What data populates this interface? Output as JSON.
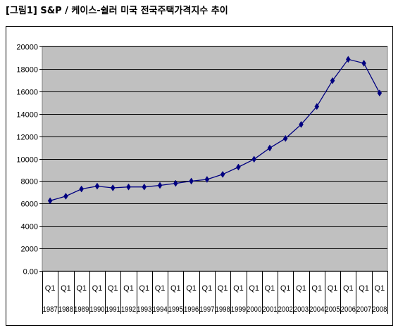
{
  "figure_title": "[그림1] S&P / 케이스-쉴러 미국 전국주택가격지수 추이",
  "colors": {
    "plot_bg": "#c0c0c0",
    "line": "#000080",
    "marker": "#000080",
    "grid": "#000000"
  },
  "chart_data": {
    "type": "line",
    "title": "",
    "xlabel": "",
    "ylabel": "",
    "ylim": [
      0,
      20000
    ],
    "yticks": [
      "0.00",
      "2000",
      "4000",
      "6000",
      "8000",
      "10000",
      "12000",
      "14000",
      "16000",
      "18000",
      "20000"
    ],
    "grid": true,
    "legend": "none",
    "categories": [
      {
        "q": "Q1",
        "year": "1987"
      },
      {
        "q": "Q1",
        "year": "1988"
      },
      {
        "q": "Q1",
        "year": "1989"
      },
      {
        "q": "Q1",
        "year": "1990"
      },
      {
        "q": "Q1",
        "year": "1991"
      },
      {
        "q": "Q1",
        "year": "1992"
      },
      {
        "q": "Q1",
        "year": "1993"
      },
      {
        "q": "Q1",
        "year": "1994"
      },
      {
        "q": "Q1",
        "year": "1995"
      },
      {
        "q": "Q1",
        "year": "1996"
      },
      {
        "q": "Q1",
        "year": "1997"
      },
      {
        "q": "Q1",
        "year": "1998"
      },
      {
        "q": "Q1",
        "year": "1999"
      },
      {
        "q": "Q1",
        "year": "2000"
      },
      {
        "q": "Q1",
        "year": "2001"
      },
      {
        "q": "Q1",
        "year": "2002"
      },
      {
        "q": "Q1",
        "year": "2003"
      },
      {
        "q": "Q1",
        "year": "2004"
      },
      {
        "q": "Q1",
        "year": "2005"
      },
      {
        "q": "Q1",
        "year": "2006"
      },
      {
        "q": "Q1",
        "year": "2007"
      },
      {
        "q": "Q1",
        "year": "2008"
      }
    ],
    "series": [
      {
        "values": [
          6250,
          6650,
          7300,
          7550,
          7400,
          7480,
          7480,
          7620,
          7800,
          8000,
          8150,
          8600,
          9250,
          9950,
          10950,
          11800,
          13050,
          14650,
          16950,
          18850,
          18500,
          15850
        ]
      }
    ]
  }
}
